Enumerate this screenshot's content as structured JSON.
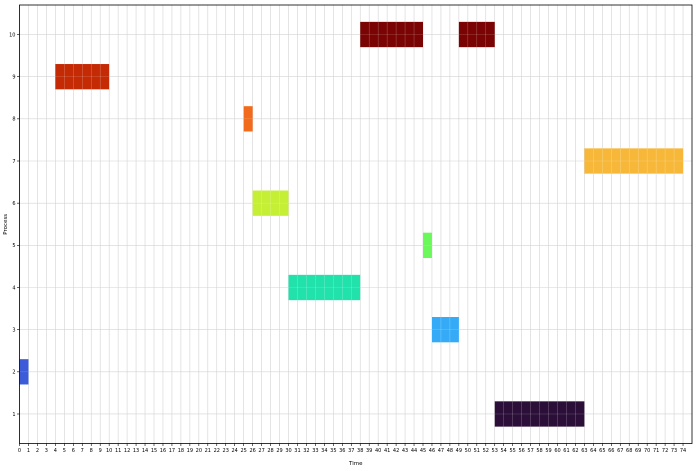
{
  "chart_data": {
    "type": "gantt",
    "title": "",
    "xlabel": "Time",
    "ylabel": "Process",
    "xlim": [
      0,
      75
    ],
    "ylim": [
      0.3,
      10.7
    ],
    "x_ticks": [
      0,
      1,
      2,
      3,
      4,
      5,
      6,
      7,
      8,
      9,
      10,
      11,
      12,
      13,
      14,
      15,
      16,
      17,
      18,
      19,
      20,
      21,
      22,
      23,
      24,
      25,
      26,
      27,
      28,
      29,
      30,
      31,
      32,
      33,
      34,
      35,
      36,
      37,
      38,
      39,
      40,
      41,
      42,
      43,
      44,
      45,
      46,
      47,
      48,
      49,
      50,
      51,
      52,
      53,
      54,
      55,
      56,
      57,
      58,
      59,
      60,
      61,
      62,
      63,
      64,
      65,
      66,
      67,
      68,
      69,
      70,
      71,
      72,
      73,
      74
    ],
    "y_ticks": [
      1,
      2,
      3,
      4,
      5,
      6,
      7,
      8,
      9,
      10
    ],
    "grid": true,
    "bar_height": 0.6,
    "tasks": [
      {
        "process": 2,
        "start": 0,
        "end": 1,
        "color": "#3b5bd8"
      },
      {
        "process": 9,
        "start": 4,
        "end": 10,
        "color": "#c42b05"
      },
      {
        "process": 8,
        "start": 25,
        "end": 26,
        "color": "#f26a1b"
      },
      {
        "process": 6,
        "start": 26,
        "end": 30,
        "color": "#c4ef34"
      },
      {
        "process": 4,
        "start": 30,
        "end": 38,
        "color": "#22e2ac"
      },
      {
        "process": 10,
        "start": 38,
        "end": 45,
        "color": "#7a0403"
      },
      {
        "process": 5,
        "start": 45,
        "end": 46,
        "color": "#6af85a"
      },
      {
        "process": 3,
        "start": 46,
        "end": 49,
        "color": "#35abf8"
      },
      {
        "process": 10,
        "start": 49,
        "end": 53,
        "color": "#7a0403"
      },
      {
        "process": 1,
        "start": 53,
        "end": 63,
        "color": "#2c0f38"
      },
      {
        "process": 7,
        "start": 63,
        "end": 74,
        "color": "#f7b83a"
      }
    ]
  }
}
